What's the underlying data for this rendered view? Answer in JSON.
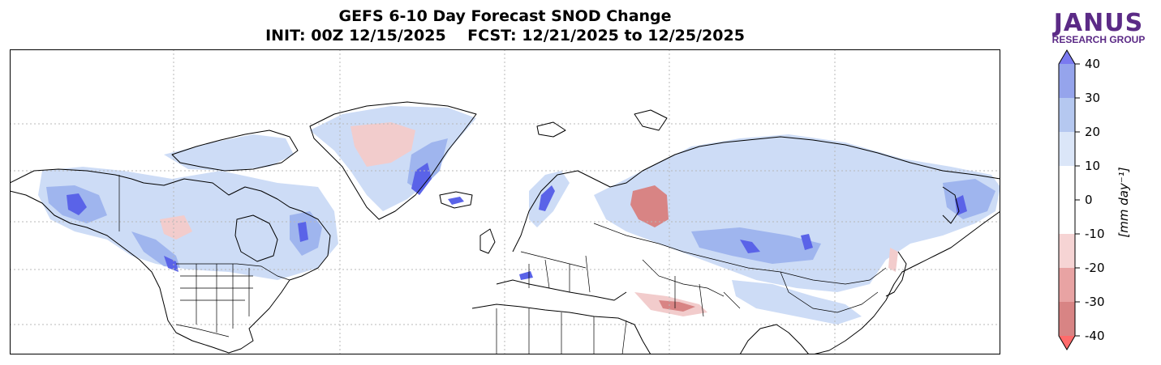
{
  "title": {
    "line1": "GEFS 6-10 Day Forecast SNOD Change",
    "line2": "INIT: 00Z 12/15/2025    FCST: 12/21/2025 to 12/25/2025"
  },
  "logo": {
    "main": "JANUS",
    "sub": "RESEARCH GROUP",
    "color": "#5b2a86"
  },
  "colorbar": {
    "unit_label": "[mm day⁻¹]",
    "ticks": [
      "40",
      "30",
      "20",
      "10",
      "0",
      "-10",
      "-20",
      "-30",
      "-40"
    ],
    "colors": [
      "#7a7af0",
      "#95a4ec",
      "#b5c8f0",
      "#dbe6f8",
      "#ffffff",
      "#ffffff",
      "#f6d4d4",
      "#e8a3a3",
      "#d88484",
      "#ff6b6b"
    ]
  },
  "map": {
    "ocean_color": "#ffffff",
    "increase_color": "#c8d8f5",
    "strong_increase_color": "#5a63e8",
    "decrease_color": "#f4c5c5",
    "strong_decrease_color": "#d66b6b"
  }
}
